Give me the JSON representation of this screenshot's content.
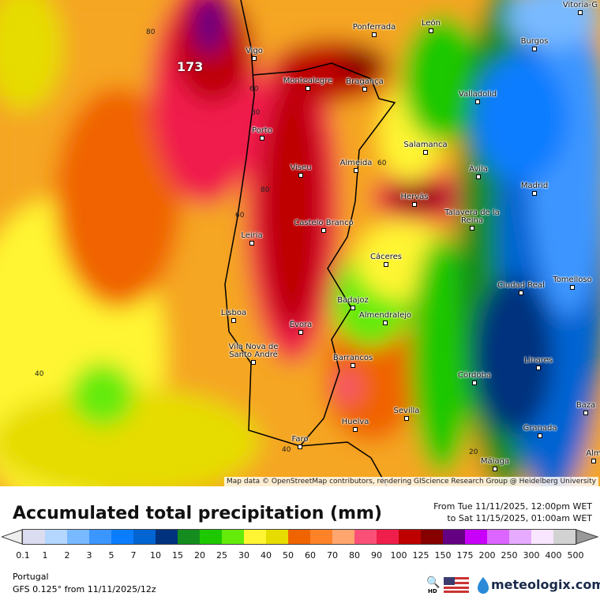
{
  "map": {
    "max_label": "173",
    "attribution": "Map data © OpenStreetMap contributors, rendering GIScience Research Group @ Heidelberg University",
    "contour_labels": [
      "80",
      "60",
      "80",
      "60",
      "80",
      "60",
      "40",
      "40",
      "20"
    ],
    "cities": [
      "Vitoria-G",
      "Ponferrada",
      "León",
      "Burgos",
      "Vigo",
      "Montealegre",
      "Bragança",
      "Valladolid",
      "Porto",
      "Salamanca",
      "Viseu",
      "Almeida",
      "Ávila",
      "Madrid",
      "Hervás",
      "Talavera de la Reina",
      "Castelo Branco",
      "Leiria",
      "Cáceres",
      "Ciudad Real",
      "Tomelloso",
      "Badajoz",
      "Lisboa",
      "Almendralejo",
      "Évora",
      "Vila Nova de Santo André",
      "Linares",
      "Barrancos",
      "Córdoba",
      "Baza",
      "Sevilla",
      "Granada",
      "Huelva",
      "Faro",
      "Málaga",
      "Alm"
    ]
  },
  "legend": {
    "title": "Accumulated total precipitation (mm)",
    "period_from": "From Tue 11/11/2025, 12:00pm WET",
    "period_to": "to Sat 11/15/2025, 01:00am WET",
    "ticks": [
      "0.1",
      "1",
      "2",
      "3",
      "5",
      "7",
      "10",
      "15",
      "20",
      "25",
      "30",
      "40",
      "50",
      "60",
      "70",
      "80",
      "90",
      "100",
      "125",
      "150",
      "175",
      "200",
      "250",
      "300",
      "400",
      "500"
    ],
    "colors": [
      "#dcdcf0",
      "#b4d7ff",
      "#78b9ff",
      "#3c96ff",
      "#0a7dff",
      "#0064d2",
      "#00327d",
      "#148c1e",
      "#1ec800",
      "#64eb0a",
      "#fff532",
      "#e6dc00",
      "#f06400",
      "#ff8228",
      "#ffa56e",
      "#fa5078",
      "#f01e4b",
      "#be0000",
      "#870000",
      "#640082",
      "#c800fa",
      "#dc64ff",
      "#e6aaff",
      "#f8e6ff",
      "#d2d2d2"
    ]
  },
  "footer": {
    "region": "Portugal",
    "model": "GFS 0.125° from  11/11/2025/12z",
    "brand": "meteologix.com",
    "hd": "HD"
  }
}
